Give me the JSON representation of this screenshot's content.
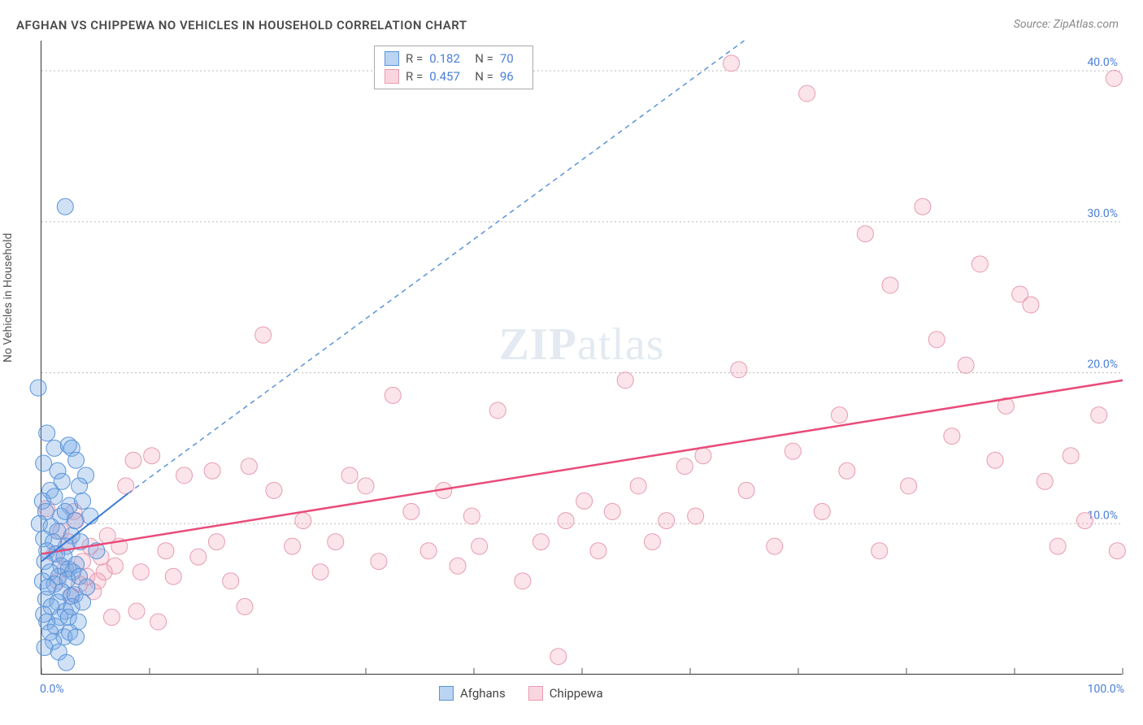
{
  "title": "AFGHAN VS CHIPPEWA NO VEHICLES IN HOUSEHOLD CORRELATION CHART",
  "source": "Source: ZipAtlas.com",
  "y_label": "No Vehicles in Household",
  "watermark_a": "ZIP",
  "watermark_b": "atlas",
  "chart": {
    "type": "scatter",
    "xlim": [
      0,
      100
    ],
    "ylim": [
      0,
      42
    ],
    "x_ticks": [
      0,
      10,
      20,
      30,
      40,
      50,
      60,
      70,
      80,
      90,
      100
    ],
    "x_tick_labels": {
      "0": "0.0%",
      "100": "100.0%"
    },
    "y_ticks": [
      10,
      20,
      30,
      40
    ],
    "y_tick_labels": {
      "10": "10.0%",
      "20": "20.0%",
      "30": "30.0%",
      "40": "40.0%"
    },
    "grid_color": "#bbbbbb",
    "background_color": "#ffffff",
    "point_radius": 10,
    "series_a": {
      "name": "Afghans",
      "color_fill": "rgba(120,170,230,0.35)",
      "color_stroke": "#5a94d8",
      "R": "0.182",
      "N": "70",
      "trend_solid": {
        "x1": 0,
        "y1": 7.5,
        "x2": 8,
        "y2": 12
      },
      "trend_dash": {
        "x1": 8,
        "y1": 12,
        "x2": 65,
        "y2": 42
      },
      "points": [
        [
          -0.3,
          19
        ],
        [
          2.2,
          31
        ],
        [
          0.5,
          16
        ],
        [
          1.2,
          15
        ],
        [
          2.5,
          15.2
        ],
        [
          2.8,
          15
        ],
        [
          0.2,
          14
        ],
        [
          1.5,
          13.5
        ],
        [
          3.2,
          14.2
        ],
        [
          4.1,
          13.2
        ],
        [
          0.8,
          12.2
        ],
        [
          1.9,
          12.8
        ],
        [
          3.5,
          12.5
        ],
        [
          0.1,
          11.5
        ],
        [
          1.2,
          11.8
        ],
        [
          2.6,
          11.2
        ],
        [
          3.8,
          11.5
        ],
        [
          0.4,
          10.8
        ],
        [
          1.8,
          10.5
        ],
        [
          2.2,
          10.8
        ],
        [
          3.1,
          10.2
        ],
        [
          4.5,
          10.5
        ],
        [
          -0.2,
          10
        ],
        [
          0.9,
          9.8
        ],
        [
          1.5,
          9.5
        ],
        [
          2.8,
          9.2
        ],
        [
          0.2,
          9
        ],
        [
          1.1,
          8.8
        ],
        [
          2.3,
          8.5
        ],
        [
          3.6,
          8.8
        ],
        [
          0.5,
          8.2
        ],
        [
          1.4,
          8
        ],
        [
          2.1,
          7.8
        ],
        [
          0.3,
          7.5
        ],
        [
          1.8,
          7.2
        ],
        [
          2.5,
          7
        ],
        [
          3.2,
          7.3
        ],
        [
          0.8,
          6.8
        ],
        [
          1.6,
          6.5
        ],
        [
          2.9,
          6.8
        ],
        [
          0.1,
          6.2
        ],
        [
          1.2,
          6
        ],
        [
          2.4,
          6.3
        ],
        [
          3.5,
          6.5
        ],
        [
          0.6,
          5.8
        ],
        [
          1.9,
          5.5
        ],
        [
          2.7,
          5.2
        ],
        [
          0.4,
          5
        ],
        [
          1.5,
          4.8
        ],
        [
          3.1,
          5.3
        ],
        [
          0.9,
          4.5
        ],
        [
          2.2,
          4.2
        ],
        [
          0.2,
          4
        ],
        [
          1.7,
          3.8
        ],
        [
          2.8,
          4.5
        ],
        [
          0.5,
          3.5
        ],
        [
          1.3,
          3.2
        ],
        [
          2.5,
          3.8
        ],
        [
          3.8,
          4.8
        ],
        [
          0.8,
          2.8
        ],
        [
          2.1,
          2.5
        ],
        [
          3.4,
          3.5
        ],
        [
          1.1,
          2.2
        ],
        [
          2.6,
          2.8
        ],
        [
          0.3,
          1.8
        ],
        [
          3.2,
          2.5
        ],
        [
          1.6,
          1.5
        ],
        [
          2.3,
          0.8
        ],
        [
          4.2,
          5.8
        ],
        [
          5.1,
          8.2
        ]
      ]
    },
    "series_b": {
      "name": "Chippewa",
      "color_fill": "rgba(240,150,175,0.25)",
      "color_stroke": "#e89ab0",
      "R": "0.457",
      "N": "96",
      "trend": {
        "x1": 0,
        "y1": 8,
        "x2": 100,
        "y2": 19.5
      },
      "points": [
        [
          0.5,
          11
        ],
        [
          1.8,
          9.5
        ],
        [
          3.2,
          10.2
        ],
        [
          2.5,
          8.8
        ],
        [
          4.5,
          8.5
        ],
        [
          1.2,
          8
        ],
        [
          3.8,
          7.5
        ],
        [
          5.5,
          7.8
        ],
        [
          2.2,
          7
        ],
        [
          4.2,
          6.5
        ],
        [
          6.1,
          9.2
        ],
        [
          3.5,
          6
        ],
        [
          5.8,
          6.8
        ],
        [
          1.5,
          6.2
        ],
        [
          4.8,
          5.5
        ],
        [
          7.2,
          8.5
        ],
        [
          2.8,
          5.2
        ],
        [
          5.2,
          6.2
        ],
        [
          6.8,
          7.2
        ],
        [
          3,
          10.8
        ],
        [
          7.8,
          12.5
        ],
        [
          8.5,
          14.2
        ],
        [
          10.2,
          14.5
        ],
        [
          6.5,
          3.8
        ],
        [
          9.2,
          6.8
        ],
        [
          11.5,
          8.2
        ],
        [
          8.8,
          4.2
        ],
        [
          12.2,
          6.5
        ],
        [
          10.8,
          3.5
        ],
        [
          14.5,
          7.8
        ],
        [
          13.2,
          13.2
        ],
        [
          15.8,
          13.5
        ],
        [
          17.5,
          6.2
        ],
        [
          16.2,
          8.8
        ],
        [
          19.2,
          13.8
        ],
        [
          21.5,
          12.2
        ],
        [
          18.8,
          4.5
        ],
        [
          23.2,
          8.5
        ],
        [
          20.5,
          22.5
        ],
        [
          25.8,
          6.8
        ],
        [
          24.2,
          10.2
        ],
        [
          28.5,
          13.2
        ],
        [
          27.2,
          8.8
        ],
        [
          30,
          12.5
        ],
        [
          32.5,
          18.5
        ],
        [
          31.2,
          7.5
        ],
        [
          35.8,
          8.2
        ],
        [
          34.2,
          10.8
        ],
        [
          38.5,
          7.2
        ],
        [
          37.2,
          12.2
        ],
        [
          40.5,
          8.5
        ],
        [
          42.2,
          17.5
        ],
        [
          39.8,
          10.5
        ],
        [
          44.5,
          6.2
        ],
        [
          47.8,
          1.2
        ],
        [
          46.2,
          8.8
        ],
        [
          48.5,
          10.2
        ],
        [
          50.2,
          11.5
        ],
        [
          52.8,
          10.8
        ],
        [
          51.5,
          8.2
        ],
        [
          55.2,
          12.5
        ],
        [
          54,
          19.5
        ],
        [
          57.8,
          10.2
        ],
        [
          59.5,
          13.8
        ],
        [
          56.5,
          8.8
        ],
        [
          61.2,
          14.5
        ],
        [
          63.8,
          40.5
        ],
        [
          60.5,
          10.5
        ],
        [
          65.2,
          12.2
        ],
        [
          67.8,
          8.5
        ],
        [
          64.5,
          20.2
        ],
        [
          69.5,
          14.8
        ],
        [
          72.2,
          10.8
        ],
        [
          70.8,
          38.5
        ],
        [
          74.5,
          13.5
        ],
        [
          76.2,
          29.2
        ],
        [
          73.8,
          17.2
        ],
        [
          78.5,
          25.8
        ],
        [
          80.2,
          12.5
        ],
        [
          77.5,
          8.2
        ],
        [
          82.8,
          22.2
        ],
        [
          81.5,
          31
        ],
        [
          84.2,
          15.8
        ],
        [
          86.8,
          27.2
        ],
        [
          85.5,
          20.5
        ],
        [
          88.2,
          14.2
        ],
        [
          90.5,
          25.2
        ],
        [
          89.2,
          17.8
        ],
        [
          92.8,
          12.8
        ],
        [
          91.5,
          24.5
        ],
        [
          95.2,
          14.5
        ],
        [
          94,
          8.5
        ],
        [
          97.8,
          17.2
        ],
        [
          99.2,
          39.5
        ],
        [
          96.5,
          10.2
        ],
        [
          99.5,
          8.2
        ]
      ]
    }
  },
  "stats_box": {
    "rows": [
      {
        "swatch": "a",
        "r_label": "R =",
        "r": "0.182",
        "n_label": "N =",
        "n": "70"
      },
      {
        "swatch": "b",
        "r_label": "R =",
        "r": "0.457",
        "n_label": "N =",
        "n": "96"
      }
    ]
  },
  "legend": {
    "a": "Afghans",
    "b": "Chippewa"
  }
}
